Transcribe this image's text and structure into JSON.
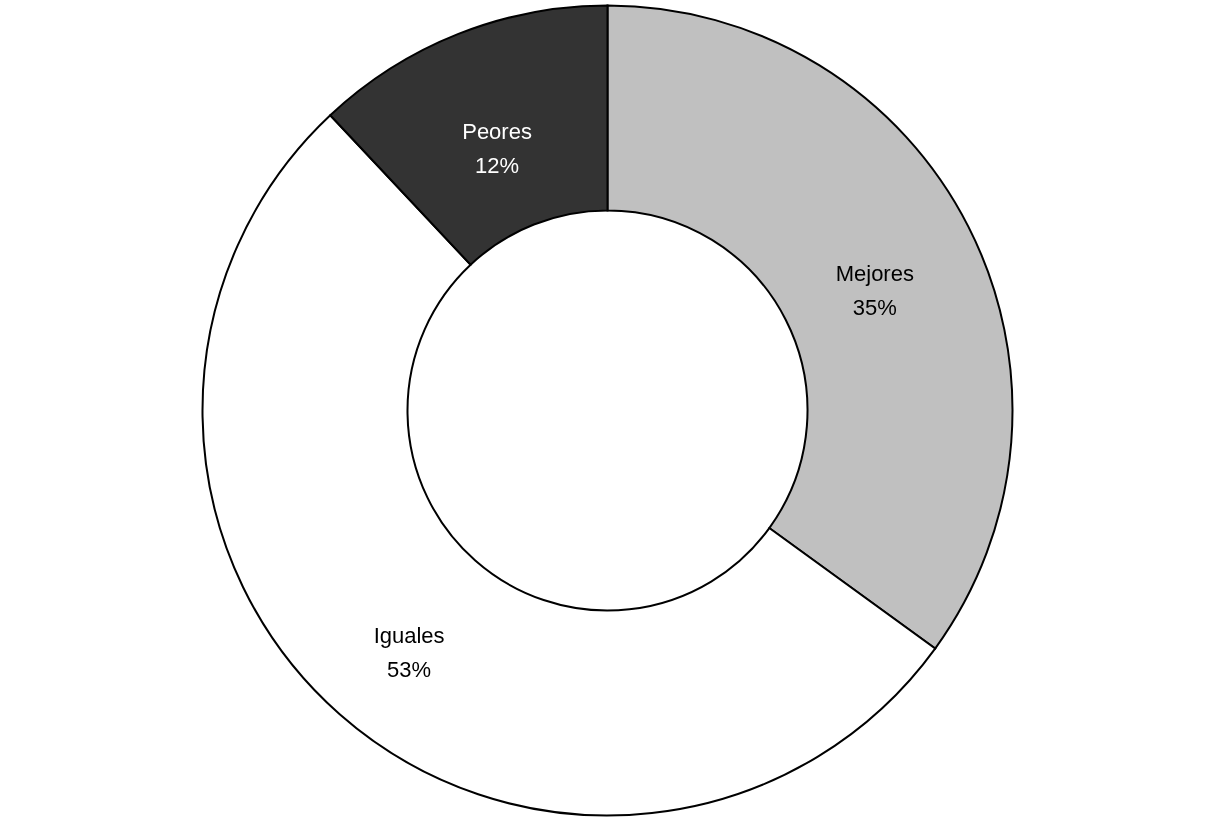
{
  "chart_data": {
    "type": "donut",
    "categories": [
      "Mejores",
      "Iguales",
      "Peores"
    ],
    "values": [
      35,
      53,
      12
    ],
    "colors": [
      "#c0c0c0",
      "#ffffff",
      "#333333"
    ],
    "value_labels": [
      "35%",
      "53%",
      "12%"
    ]
  }
}
